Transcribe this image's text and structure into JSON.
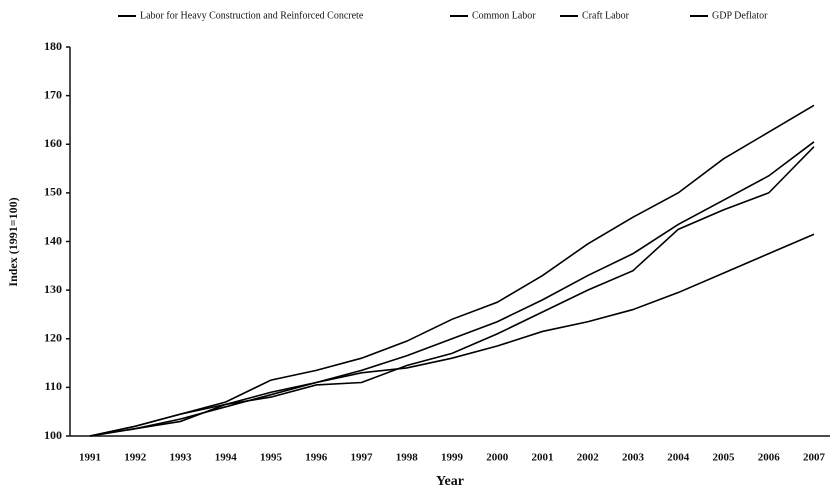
{
  "chart_data": {
    "type": "line",
    "categories": [
      "1991",
      "1992",
      "1993",
      "1994",
      "1995",
      "1996",
      "1997",
      "1998",
      "1999",
      "2000",
      "2001",
      "2002",
      "2003",
      "2004",
      "2005",
      "2006",
      "2007"
    ],
    "series": [
      {
        "name": "Labor for Heavy Construction and Reinforced Concrete",
        "color": "#000000",
        "values": [
          100,
          102,
          104.5,
          107,
          111.5,
          113.5,
          116,
          119.5,
          124,
          127.5,
          133,
          139.5,
          145,
          150,
          157,
          162.5,
          168
        ]
      },
      {
        "name": "Common Labor",
        "color": "#000000",
        "values": [
          100,
          102,
          104.5,
          106.5,
          109,
          111,
          113.5,
          116.5,
          120,
          123.5,
          128,
          133,
          137.5,
          143.5,
          148.5,
          153.5,
          160.5
        ]
      },
      {
        "name": "Craft Labor",
        "color": "#000000",
        "values": [
          100,
          101.5,
          103,
          106.5,
          108,
          110.5,
          111,
          114.5,
          117,
          121,
          125.5,
          130,
          134,
          142.5,
          146.5,
          150,
          159.5
        ]
      },
      {
        "name": "GDP Deflator",
        "color": "#000000",
        "values": [
          100,
          101.5,
          103.5,
          106,
          108.5,
          111,
          113,
          114,
          116,
          118.5,
          121.5,
          123.5,
          126,
          129.5,
          133.5,
          137.5,
          141.5
        ]
      }
    ],
    "ylim": [
      100,
      180
    ],
    "yticks": [
      100,
      110,
      120,
      130,
      140,
      150,
      160,
      170,
      180
    ],
    "ylabel": "Index (1991=100)",
    "xlabel": "Year",
    "legend": "top"
  }
}
